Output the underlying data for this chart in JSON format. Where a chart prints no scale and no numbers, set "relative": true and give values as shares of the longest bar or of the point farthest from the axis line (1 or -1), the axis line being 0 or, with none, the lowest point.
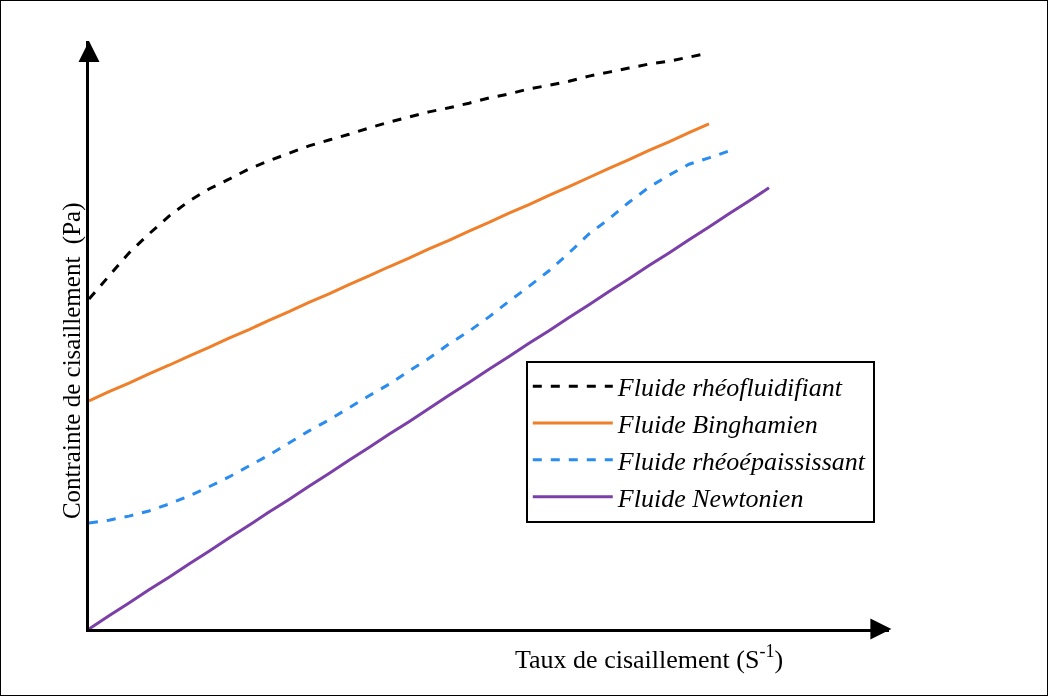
{
  "chart_data": {
    "type": "line",
    "relative": true,
    "xlabel": "Taux de cisaillement (S$^{-1}$)",
    "ylabel": "Contrainte de cisaillement  (Pa)",
    "categories": [
      null,
      null,
      null,
      null,
      null,
      null,
      null,
      null,
      null,
      null,
      null,
      null,
      null,
      null,
      null,
      null,
      null,
      null,
      null,
      null,
      null,
      null,
      null,
      null,
      null,
      null,
      null,
      null,
      null,
      null,
      null,
      null,
      null,
      null,
      null,
      null,
      null,
      null,
      null,
      null,
      null
    ],
    "series": [
      {
        "name": "Fluide rhéofluidifiant",
        "color": "#000000",
        "line_style": "dashed",
        "values": [
          0.573,
          0.613,
          0.653,
          0.686,
          0.717,
          0.743,
          0.764,
          0.781,
          0.799,
          0.813,
          0.826,
          0.839,
          0.849,
          0.859,
          0.87,
          0.88,
          0.889,
          0.898,
          0.905,
          0.913,
          0.922,
          0.929,
          0.938,
          0.944,
          0.951,
          0.96,
          0.967,
          0.974,
          0.981,
          0.986,
          0.993,
          1.0,
          null,
          null,
          null,
          null,
          null,
          null,
          null,
          null,
          null
        ]
      },
      {
        "name": "Fluide Binghamien",
        "color": "#f07f2a",
        "line_style": "solid",
        "values": [
          0.396,
          0.412,
          0.427,
          0.443,
          0.458,
          0.474,
          0.489,
          0.505,
          0.52,
          0.536,
          0.551,
          0.567,
          0.582,
          0.598,
          0.613,
          0.629,
          0.644,
          0.66,
          0.675,
          0.691,
          0.706,
          0.722,
          0.737,
          0.753,
          0.768,
          0.784,
          0.8,
          0.815,
          0.831,
          0.846,
          0.862,
          0.877,
          null,
          null,
          null,
          null,
          null,
          null,
          null,
          null,
          null
        ]
      },
      {
        "name": "Fluide rhéoépaississant",
        "color": "#2a8cf0",
        "line_style": "dashed",
        "values": [
          0.184,
          0.189,
          0.196,
          0.205,
          0.217,
          0.231,
          0.247,
          0.264,
          0.283,
          0.302,
          0.323,
          0.344,
          0.363,
          0.384,
          0.405,
          0.425,
          0.448,
          0.47,
          0.495,
          0.517,
          0.542,
          0.569,
          0.595,
          0.622,
          0.653,
          0.686,
          0.712,
          0.741,
          0.767,
          0.788,
          0.807,
          0.818,
          0.83,
          null,
          null,
          null,
          null,
          null,
          null,
          null,
          null
        ]
      },
      {
        "name": "Fluide Newtonien",
        "color": "#7b3fa8",
        "line_style": "solid",
        "values": [
          0,
          0.023,
          0.045,
          0.068,
          0.09,
          0.113,
          0.135,
          0.158,
          0.18,
          0.203,
          0.225,
          0.248,
          0.27,
          0.293,
          0.315,
          0.338,
          0.36,
          0.383,
          0.406,
          0.428,
          0.451,
          0.473,
          0.496,
          0.518,
          0.541,
          0.563,
          0.586,
          0.608,
          0.631,
          0.653,
          0.676,
          0.698,
          0.721,
          0.743,
          0.766,
          null,
          null,
          null,
          null,
          null,
          null
        ]
      }
    ],
    "legend": "bottom right",
    "grid": false,
    "marker": "none"
  }
}
